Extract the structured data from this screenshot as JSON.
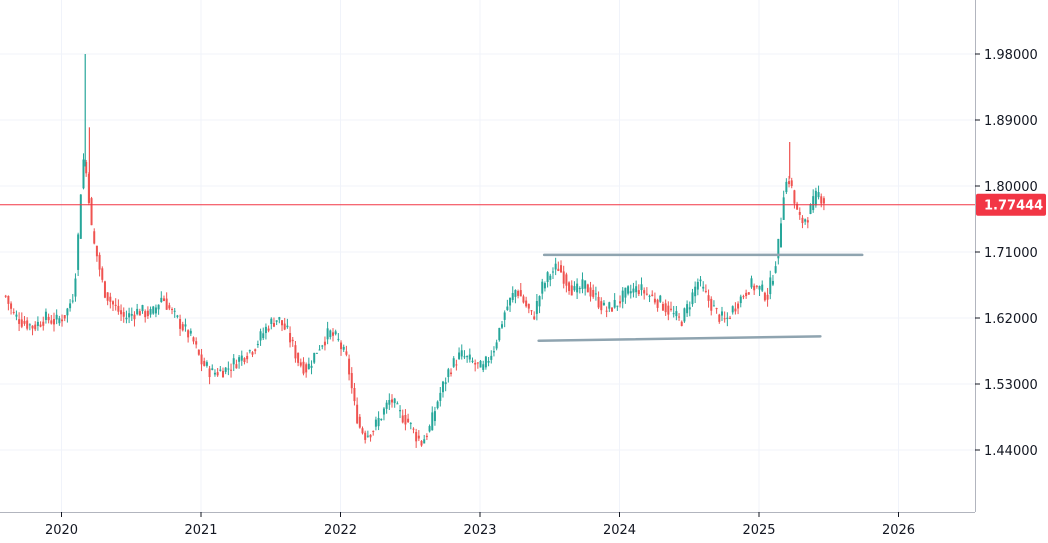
{
  "chart_data": {
    "type": "candlestick",
    "title": "",
    "xlabel": "",
    "ylabel": "",
    "y_ticks": [
      "1.98000",
      "1.89000",
      "1.80000",
      "1.71000",
      "1.62000",
      "1.53000",
      "1.44000"
    ],
    "y_tick_values": [
      1.98,
      1.89,
      1.8,
      1.71,
      1.62,
      1.53,
      1.44
    ],
    "x_ticks": [
      "2020",
      "2021",
      "2022",
      "2023",
      "2024",
      "2025",
      "2026"
    ],
    "x_tick_values": [
      2020.0,
      2021.0,
      2022.0,
      2023.0,
      2024.0,
      2025.0,
      2026.0
    ],
    "xlim": [
      2019.6,
      2026.6
    ],
    "ylim": [
      1.36,
      2.05
    ],
    "grid": true,
    "current_price": {
      "label": "1.77444",
      "value": 1.77444
    },
    "series_path": [
      [
        2019.6,
        1.65
      ],
      [
        2019.65,
        1.625
      ],
      [
        2019.72,
        1.615
      ],
      [
        2019.8,
        1.608
      ],
      [
        2019.88,
        1.62
      ],
      [
        2019.96,
        1.615
      ],
      [
        2020.03,
        1.625
      ],
      [
        2020.08,
        1.65
      ],
      [
        2020.11,
        1.7
      ],
      [
        2020.14,
        1.8
      ],
      [
        2020.16,
        1.84
      ],
      [
        2020.19,
        1.8
      ],
      [
        2020.22,
        1.73
      ],
      [
        2020.26,
        1.7
      ],
      [
        2020.3,
        1.66
      ],
      [
        2020.36,
        1.64
      ],
      [
        2020.45,
        1.62
      ],
      [
        2020.55,
        1.63
      ],
      [
        2020.65,
        1.625
      ],
      [
        2020.72,
        1.65
      ],
      [
        2020.78,
        1.63
      ],
      [
        2020.86,
        1.61
      ],
      [
        2020.94,
        1.59
      ],
      [
        2021.0,
        1.56
      ],
      [
        2021.08,
        1.545
      ],
      [
        2021.18,
        1.55
      ],
      [
        2021.28,
        1.565
      ],
      [
        2021.38,
        1.58
      ],
      [
        2021.48,
        1.61
      ],
      [
        2021.55,
        1.62
      ],
      [
        2021.62,
        1.6
      ],
      [
        2021.7,
        1.56
      ],
      [
        2021.76,
        1.55
      ],
      [
        2021.84,
        1.58
      ],
      [
        2021.92,
        1.6
      ],
      [
        2021.98,
        1.59
      ],
      [
        2022.05,
        1.56
      ],
      [
        2022.1,
        1.5
      ],
      [
        2022.14,
        1.47
      ],
      [
        2022.18,
        1.46
      ],
      [
        2022.24,
        1.47
      ],
      [
        2022.3,
        1.49
      ],
      [
        2022.36,
        1.51
      ],
      [
        2022.42,
        1.49
      ],
      [
        2022.48,
        1.48
      ],
      [
        2022.54,
        1.46
      ],
      [
        2022.58,
        1.45
      ],
      [
        2022.64,
        1.47
      ],
      [
        2022.7,
        1.51
      ],
      [
        2022.78,
        1.55
      ],
      [
        2022.86,
        1.57
      ],
      [
        2022.94,
        1.56
      ],
      [
        2023.02,
        1.55
      ],
      [
        2023.1,
        1.58
      ],
      [
        2023.18,
        1.63
      ],
      [
        2023.26,
        1.66
      ],
      [
        2023.32,
        1.64
      ],
      [
        2023.38,
        1.62
      ],
      [
        2023.44,
        1.66
      ],
      [
        2023.5,
        1.68
      ],
      [
        2023.56,
        1.69
      ],
      [
        2023.62,
        1.67
      ],
      [
        2023.68,
        1.655
      ],
      [
        2023.75,
        1.665
      ],
      [
        2023.82,
        1.65
      ],
      [
        2023.9,
        1.63
      ],
      [
        2023.98,
        1.64
      ],
      [
        2024.06,
        1.655
      ],
      [
        2024.14,
        1.66
      ],
      [
        2024.22,
        1.65
      ],
      [
        2024.3,
        1.64
      ],
      [
        2024.38,
        1.625
      ],
      [
        2024.44,
        1.615
      ],
      [
        2024.5,
        1.64
      ],
      [
        2024.56,
        1.67
      ],
      [
        2024.62,
        1.65
      ],
      [
        2024.7,
        1.625
      ],
      [
        2024.76,
        1.615
      ],
      [
        2024.82,
        1.635
      ],
      [
        2024.88,
        1.65
      ],
      [
        2024.94,
        1.665
      ],
      [
        2025.0,
        1.66
      ],
      [
        2025.06,
        1.65
      ],
      [
        2025.1,
        1.68
      ],
      [
        2025.14,
        1.72
      ],
      [
        2025.18,
        1.8
      ],
      [
        2025.22,
        1.81
      ],
      [
        2025.26,
        1.77
      ],
      [
        2025.3,
        1.75
      ],
      [
        2025.35,
        1.76
      ],
      [
        2025.42,
        1.79
      ],
      [
        2025.47,
        1.78
      ]
    ],
    "spikes": [
      {
        "x": 2020.17,
        "high": 1.98
      },
      {
        "x": 2020.2,
        "high": 1.88
      },
      {
        "x": 2025.22,
        "high": 1.86
      }
    ],
    "trendlines": [
      {
        "name": "resistance",
        "from": [
          2023.46,
          1.706
        ],
        "to": [
          2025.74,
          1.706
        ]
      },
      {
        "name": "support",
        "from": [
          2023.42,
          1.589
        ],
        "to": [
          2025.44,
          1.595
        ]
      }
    ],
    "colors": {
      "up": "#26a69a",
      "down": "#ef5350",
      "grid": "#f0f3fa",
      "axis": "#131722",
      "price_line": "#f23645",
      "trendline": "#8fa4b0"
    }
  }
}
